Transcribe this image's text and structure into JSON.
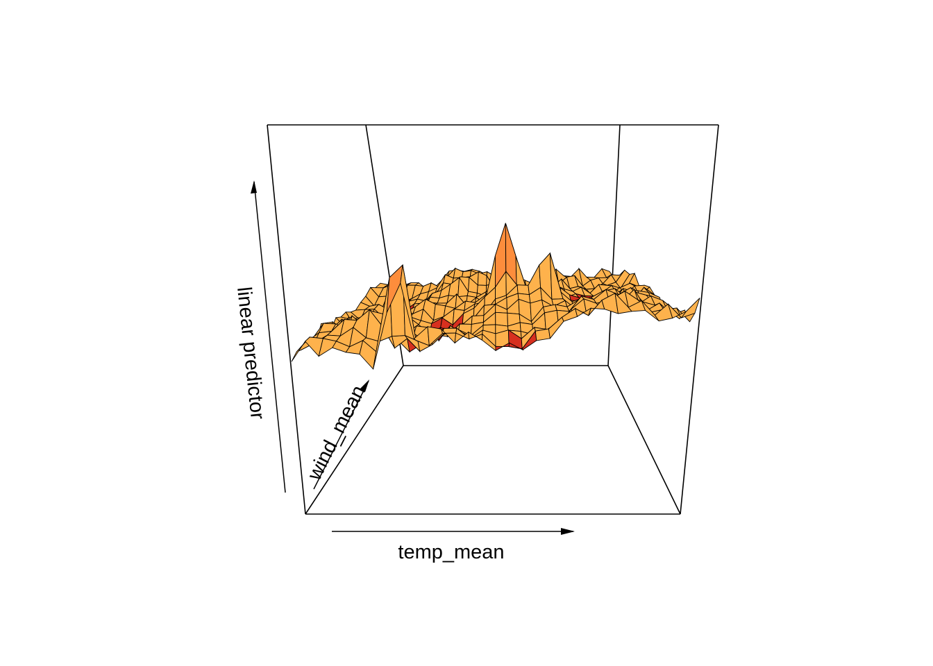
{
  "chart_data": {
    "type": "surface",
    "title": "",
    "xlabel": "temp_mean",
    "ylabel": "wind_mean",
    "zlabel": "linear predictor",
    "colors": {
      "low": "#d7301f",
      "mid": "#fd8d3c",
      "base": "#feb24c",
      "high": "#ffff33",
      "mesh": "#000000",
      "box": "#000000"
    },
    "grid_cols": 30,
    "grid_rows": 18,
    "features": [
      {
        "kind": "spike",
        "x": 0.25,
        "y": 0.03,
        "z": 3.2
      },
      {
        "kind": "dip",
        "x": 0.23,
        "y": 0.01,
        "z": -0.5
      },
      {
        "kind": "peak",
        "x": 0.53,
        "y": 0.55,
        "z": 0.95
      },
      {
        "kind": "peak",
        "x": 0.66,
        "y": 0.45,
        "z": 0.55
      },
      {
        "kind": "peak",
        "x": 0.17,
        "y": 0.2,
        "z": 0.35
      }
    ]
  }
}
